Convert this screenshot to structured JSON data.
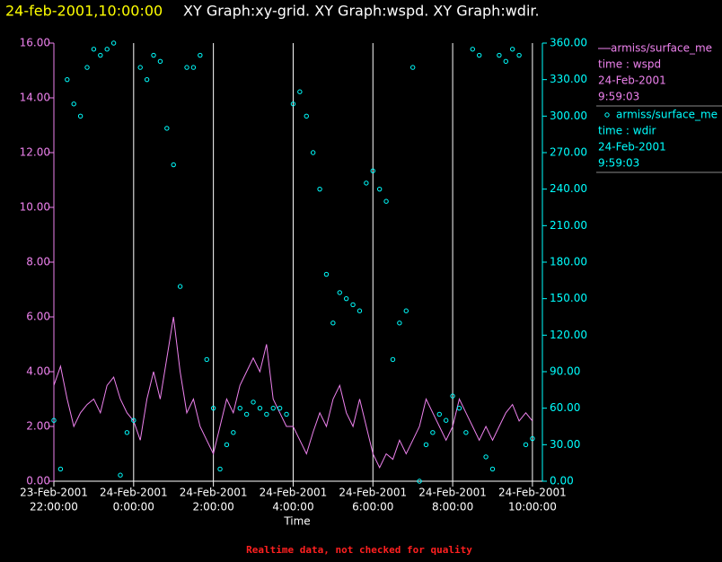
{
  "chart_data": {
    "type": "line",
    "title_time": "24-feb-2001,10:00:00",
    "title": "XY Graph:xy-grid.  XY Graph:wspd.  XY Graph:wdir.",
    "xlabel": "Time",
    "footnote": "Realtime data, not checked for quality",
    "xlim": [
      "2001-02-23T22:00:00",
      "2001-02-24T10:15:00"
    ],
    "xticks": [
      {
        "value": "2001-02-23T22:00:00",
        "label": [
          "23-Feb-2001",
          "22:00:00"
        ]
      },
      {
        "value": "2001-02-24T00:00:00",
        "label": [
          "24-Feb-2001",
          "0:00:00"
        ]
      },
      {
        "value": "2001-02-24T02:00:00",
        "label": [
          "24-Feb-2001",
          "2:00:00"
        ]
      },
      {
        "value": "2001-02-24T04:00:00",
        "label": [
          "24-Feb-2001",
          "4:00:00"
        ]
      },
      {
        "value": "2001-02-24T06:00:00",
        "label": [
          "24-Feb-2001",
          "6:00:00"
        ]
      },
      {
        "value": "2001-02-24T08:00:00",
        "label": [
          "24-Feb-2001",
          "8:00:00"
        ]
      },
      {
        "value": "2001-02-24T10:00:00",
        "label": [
          "24-Feb-2001",
          "10:00:00"
        ]
      }
    ],
    "grid": true,
    "ylim": [
      0,
      16
    ],
    "yticks": [
      {
        "value": 0,
        "label": "0.00"
      },
      {
        "value": 2,
        "label": "2.00"
      },
      {
        "value": 4,
        "label": "4.00"
      },
      {
        "value": 6,
        "label": "6.00"
      },
      {
        "value": 8,
        "label": "8.00"
      },
      {
        "value": 10,
        "label": "10.00"
      },
      {
        "value": 12,
        "label": "12.00"
      },
      {
        "value": 14,
        "label": "14.00"
      },
      {
        "value": 16,
        "label": "16.00"
      }
    ],
    "y2lim": [
      0,
      360
    ],
    "y2ticks": [
      {
        "value": 0,
        "label": "0.00"
      },
      {
        "value": 30,
        "label": "30.00"
      },
      {
        "value": 60,
        "label": "60.00"
      },
      {
        "value": 90,
        "label": "90.00"
      },
      {
        "value": 120,
        "label": "120.00"
      },
      {
        "value": 150,
        "label": "150.00"
      },
      {
        "value": 180,
        "label": "180.00"
      },
      {
        "value": 210,
        "label": "210.00"
      },
      {
        "value": 240,
        "label": "240.00"
      },
      {
        "value": 270,
        "label": "270.00"
      },
      {
        "value": 300,
        "label": "300.00"
      },
      {
        "value": 330,
        "label": "330.00"
      },
      {
        "value": 360,
        "label": "360.00"
      }
    ],
    "x": [
      "2001-02-23T22:00:00",
      "2001-02-23T22:10:00",
      "2001-02-23T22:20:00",
      "2001-02-23T22:30:00",
      "2001-02-23T22:40:00",
      "2001-02-23T22:50:00",
      "2001-02-23T23:00:00",
      "2001-02-23T23:10:00",
      "2001-02-23T23:20:00",
      "2001-02-23T23:30:00",
      "2001-02-23T23:40:00",
      "2001-02-23T23:50:00",
      "2001-02-24T00:00:00",
      "2001-02-24T00:10:00",
      "2001-02-24T00:20:00",
      "2001-02-24T00:30:00",
      "2001-02-24T00:40:00",
      "2001-02-24T00:50:00",
      "2001-02-24T01:00:00",
      "2001-02-24T01:10:00",
      "2001-02-24T01:20:00",
      "2001-02-24T01:30:00",
      "2001-02-24T01:40:00",
      "2001-02-24T01:50:00",
      "2001-02-24T02:00:00",
      "2001-02-24T02:10:00",
      "2001-02-24T02:20:00",
      "2001-02-24T02:30:00",
      "2001-02-24T02:40:00",
      "2001-02-24T02:50:00",
      "2001-02-24T03:00:00",
      "2001-02-24T03:10:00",
      "2001-02-24T03:20:00",
      "2001-02-24T03:30:00",
      "2001-02-24T03:40:00",
      "2001-02-24T03:50:00",
      "2001-02-24T04:00:00",
      "2001-02-24T04:10:00",
      "2001-02-24T04:20:00",
      "2001-02-24T04:30:00",
      "2001-02-24T04:40:00",
      "2001-02-24T04:50:00",
      "2001-02-24T05:00:00",
      "2001-02-24T05:10:00",
      "2001-02-24T05:20:00",
      "2001-02-24T05:30:00",
      "2001-02-24T05:40:00",
      "2001-02-24T05:50:00",
      "2001-02-24T06:00:00",
      "2001-02-24T06:10:00",
      "2001-02-24T06:20:00",
      "2001-02-24T06:30:00",
      "2001-02-24T06:40:00",
      "2001-02-24T06:50:00",
      "2001-02-24T07:00:00",
      "2001-02-24T07:10:00",
      "2001-02-24T07:20:00",
      "2001-02-24T07:30:00",
      "2001-02-24T07:40:00",
      "2001-02-24T07:50:00",
      "2001-02-24T08:00:00",
      "2001-02-24T08:10:00",
      "2001-02-24T08:20:00",
      "2001-02-24T08:30:00",
      "2001-02-24T08:40:00",
      "2001-02-24T08:50:00",
      "2001-02-24T09:00:00",
      "2001-02-24T09:10:00",
      "2001-02-24T09:20:00",
      "2001-02-24T09:30:00",
      "2001-02-24T09:40:00",
      "2001-02-24T09:50:00",
      "2001-02-24T10:00:00"
    ],
    "series": [
      {
        "name": "armiss/surface_me",
        "legend_lines": [
          "time : wspd",
          "24-Feb-2001",
          "9:59:03"
        ],
        "color": "#ee82ee",
        "style": "line",
        "values": [
          3.5,
          4.2,
          3.0,
          2.0,
          2.5,
          2.8,
          3.0,
          2.5,
          3.5,
          3.8,
          3.0,
          2.5,
          2.2,
          1.5,
          3.0,
          4.0,
          3.0,
          4.5,
          6.0,
          4.0,
          2.5,
          3.0,
          2.0,
          1.5,
          1.0,
          2.0,
          3.0,
          2.5,
          3.5,
          4.0,
          4.5,
          4.0,
          5.0,
          3.0,
          2.5,
          2.0,
          2.0,
          1.5,
          1.0,
          1.8,
          2.5,
          2.0,
          3.0,
          3.5,
          2.5,
          2.0,
          3.0,
          2.0,
          1.0,
          0.5,
          1.0,
          0.8,
          1.5,
          1.0,
          1.5,
          2.0,
          3.0,
          2.5,
          2.0,
          1.5,
          2.0,
          3.0,
          2.5,
          2.0,
          1.5,
          2.0,
          1.5,
          2.0,
          2.5,
          2.8,
          2.2,
          2.5,
          2.2
        ]
      },
      {
        "name": "armiss/surface_me",
        "legend_lines": [
          "time : wdir",
          "24-Feb-2001",
          "9:59:03"
        ],
        "color": "#00ffff",
        "style": "points",
        "axis": "y2",
        "values": [
          50,
          10,
          330,
          310,
          300,
          340,
          355,
          350,
          355,
          360,
          5,
          40,
          50,
          340,
          330,
          350,
          345,
          290,
          260,
          160,
          340,
          340,
          350,
          100,
          60,
          10,
          30,
          40,
          60,
          55,
          65,
          60,
          55,
          60,
          60,
          55,
          310,
          320,
          300,
          270,
          240,
          170,
          130,
          155,
          150,
          145,
          140,
          245,
          255,
          240,
          230,
          100,
          130,
          140,
          340,
          0,
          30,
          40,
          55,
          50,
          70,
          60,
          40,
          355,
          350,
          20,
          10,
          350,
          345,
          355,
          350,
          30,
          35
        ]
      }
    ]
  }
}
